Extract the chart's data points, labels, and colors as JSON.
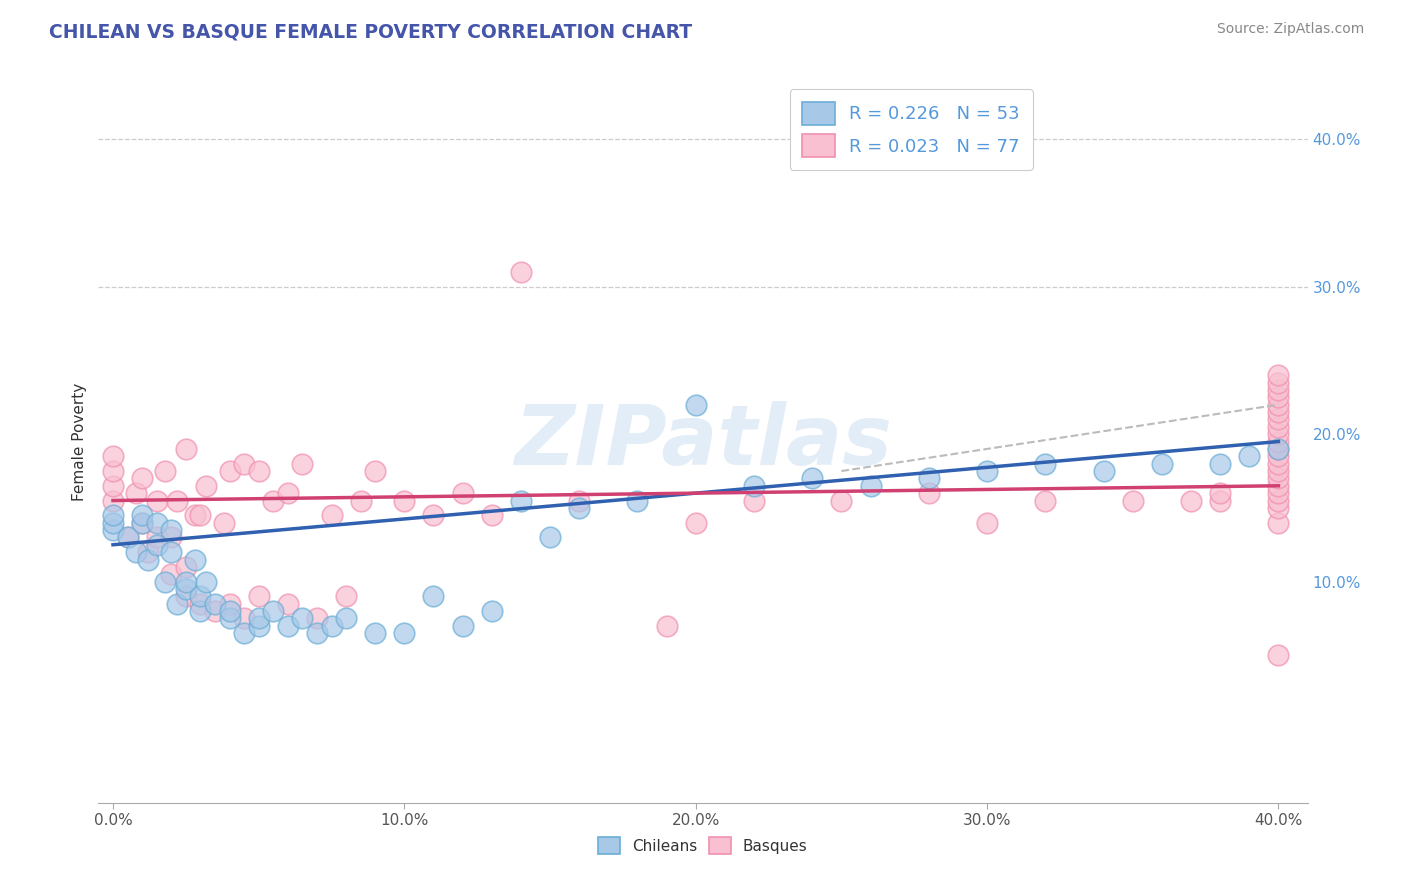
{
  "title": "CHILEAN VS BASQUE FEMALE POVERTY CORRELATION CHART",
  "source": "Source: ZipAtlas.com",
  "ylabel": "Female Poverty",
  "xlim": [
    -0.005,
    0.41
  ],
  "ylim": [
    -0.05,
    0.44
  ],
  "xticks": [
    0.0,
    0.1,
    0.2,
    0.3,
    0.4
  ],
  "xtick_labels": [
    "0.0%",
    "10.0%",
    "20.0%",
    "30.0%",
    "40.0%"
  ],
  "ytick_labels": [
    "10.0%",
    "20.0%",
    "30.0%",
    "40.0%"
  ],
  "ytick_vals": [
    0.1,
    0.2,
    0.3,
    0.4
  ],
  "dashed_line_vals": [
    0.3,
    0.4
  ],
  "chilean_color": "#a8c8e8",
  "chilean_edge": "#6baed6",
  "basque_color": "#f8c0d0",
  "basque_edge": "#f090b0",
  "trend_chilean_color": "#3060b0",
  "trend_basque_color": "#d04070",
  "trend_dashed_color": "#bbbbbb",
  "background_color": "#ffffff",
  "title_color": "#4455aa",
  "source_color": "#888888",
  "ytick_color": "#5599dd",
  "watermark_color": "#c8ddf0",
  "chileans_x": [
    0.0,
    0.0,
    0.0,
    0.005,
    0.008,
    0.01,
    0.01,
    0.012,
    0.015,
    0.015,
    0.018,
    0.02,
    0.02,
    0.022,
    0.025,
    0.025,
    0.028,
    0.03,
    0.03,
    0.032,
    0.035,
    0.04,
    0.04,
    0.045,
    0.05,
    0.05,
    0.055,
    0.06,
    0.065,
    0.07,
    0.075,
    0.08,
    0.09,
    0.1,
    0.11,
    0.12,
    0.13,
    0.14,
    0.15,
    0.16,
    0.18,
    0.2,
    0.22,
    0.24,
    0.26,
    0.28,
    0.3,
    0.32,
    0.34,
    0.36,
    0.38,
    0.39,
    0.4
  ],
  "chileans_y": [
    0.135,
    0.14,
    0.145,
    0.13,
    0.12,
    0.14,
    0.145,
    0.115,
    0.125,
    0.14,
    0.1,
    0.12,
    0.135,
    0.085,
    0.095,
    0.1,
    0.115,
    0.08,
    0.09,
    0.1,
    0.085,
    0.075,
    0.08,
    0.065,
    0.07,
    0.075,
    0.08,
    0.07,
    0.075,
    0.065,
    0.07,
    0.075,
    0.065,
    0.065,
    0.09,
    0.07,
    0.08,
    0.155,
    0.13,
    0.15,
    0.155,
    0.22,
    0.165,
    0.17,
    0.165,
    0.17,
    0.175,
    0.18,
    0.175,
    0.18,
    0.18,
    0.185,
    0.19
  ],
  "basques_x": [
    0.0,
    0.0,
    0.0,
    0.0,
    0.005,
    0.008,
    0.01,
    0.01,
    0.012,
    0.015,
    0.015,
    0.018,
    0.02,
    0.02,
    0.022,
    0.025,
    0.025,
    0.025,
    0.028,
    0.03,
    0.03,
    0.032,
    0.035,
    0.038,
    0.04,
    0.04,
    0.045,
    0.045,
    0.05,
    0.05,
    0.055,
    0.06,
    0.06,
    0.065,
    0.07,
    0.075,
    0.08,
    0.085,
    0.09,
    0.1,
    0.11,
    0.12,
    0.13,
    0.14,
    0.16,
    0.19,
    0.2,
    0.22,
    0.25,
    0.28,
    0.3,
    0.32,
    0.35,
    0.37,
    0.38,
    0.38,
    0.4,
    0.4,
    0.4,
    0.4,
    0.4,
    0.4,
    0.4,
    0.4,
    0.4,
    0.4,
    0.4,
    0.4,
    0.4,
    0.4,
    0.4,
    0.4,
    0.4,
    0.4,
    0.4,
    0.4,
    0.4
  ],
  "basques_y": [
    0.155,
    0.165,
    0.175,
    0.185,
    0.13,
    0.16,
    0.14,
    0.17,
    0.12,
    0.13,
    0.155,
    0.175,
    0.105,
    0.13,
    0.155,
    0.09,
    0.11,
    0.19,
    0.145,
    0.085,
    0.145,
    0.165,
    0.08,
    0.14,
    0.085,
    0.175,
    0.075,
    0.18,
    0.09,
    0.175,
    0.155,
    0.085,
    0.16,
    0.18,
    0.075,
    0.145,
    0.09,
    0.155,
    0.175,
    0.155,
    0.145,
    0.16,
    0.145,
    0.31,
    0.155,
    0.07,
    0.14,
    0.155,
    0.155,
    0.16,
    0.14,
    0.155,
    0.155,
    0.155,
    0.155,
    0.16,
    0.14,
    0.15,
    0.155,
    0.16,
    0.165,
    0.17,
    0.175,
    0.18,
    0.185,
    0.19,
    0.195,
    0.2,
    0.205,
    0.21,
    0.215,
    0.22,
    0.225,
    0.23,
    0.235,
    0.24,
    0.05
  ],
  "chilean_trend_x0": 0.0,
  "chilean_trend_y0": 0.125,
  "chilean_trend_x1": 0.4,
  "chilean_trend_y1": 0.195,
  "basque_trend_x0": 0.0,
  "basque_trend_y0": 0.155,
  "basque_trend_x1": 0.4,
  "basque_trend_y1": 0.165,
  "dashed_trend_x0": 0.25,
  "dashed_trend_y0": 0.175,
  "dashed_trend_x1": 0.4,
  "dashed_trend_y1": 0.22
}
